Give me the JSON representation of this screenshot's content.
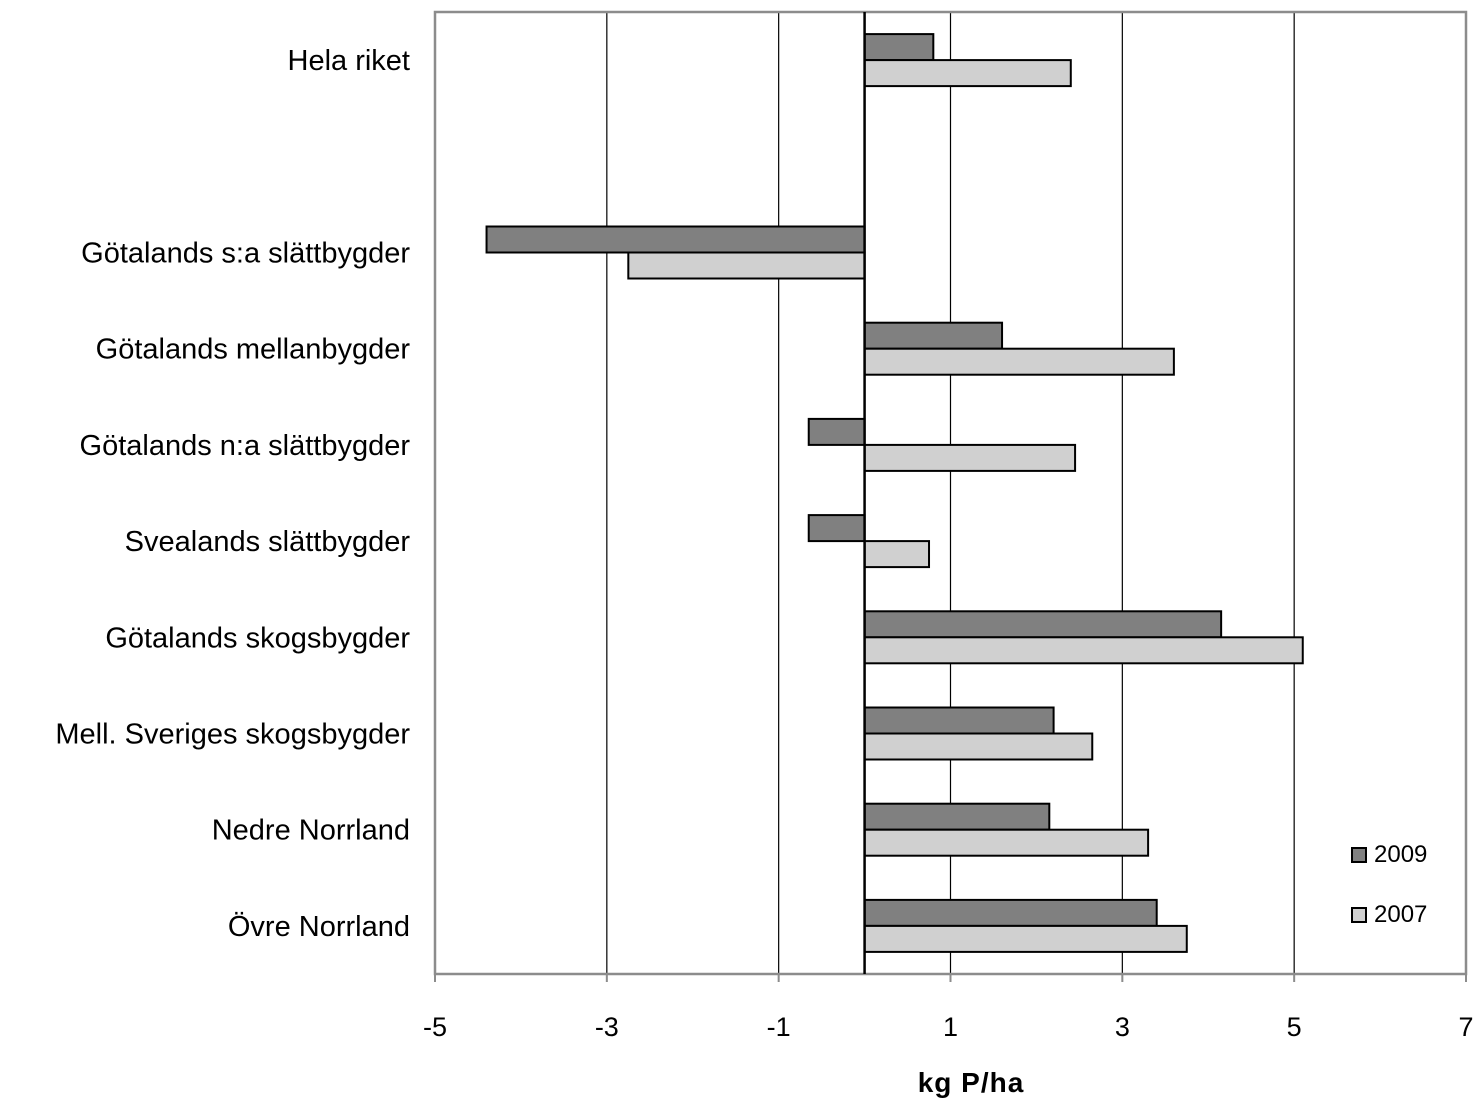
{
  "chart_data": {
    "type": "bar",
    "orientation": "horizontal",
    "categories": [
      "Hela riket",
      "",
      "Götalands s:a slättbygder",
      "Götalands mellanbygder",
      "Götalands n:a slättbygder",
      "Svealands slättbygder",
      "Götalands skogsbygder",
      "Mell. Sveriges skogsbygder",
      "Nedre Norrland",
      "Övre Norrland"
    ],
    "series": [
      {
        "name": "2009",
        "color": "#808080",
        "values": [
          0.8,
          null,
          -4.4,
          1.6,
          -0.65,
          -0.65,
          4.15,
          2.2,
          2.15,
          3.4
        ]
      },
      {
        "name": "2007",
        "color": "#d0d0d0",
        "values": [
          2.4,
          null,
          -2.75,
          3.6,
          2.45,
          0.75,
          5.1,
          2.65,
          3.3,
          3.75
        ]
      }
    ],
    "xlabel": "kg P/ha",
    "ylabel": "",
    "xlim": [
      -5,
      7
    ],
    "xticks": [
      -5,
      -3,
      -1,
      1,
      3,
      5,
      7
    ],
    "xtick_labels": [
      "-5",
      "-3",
      "-1",
      "1",
      "3",
      "5",
      "7"
    ],
    "grid": true,
    "legend_position": "bottom-right"
  }
}
